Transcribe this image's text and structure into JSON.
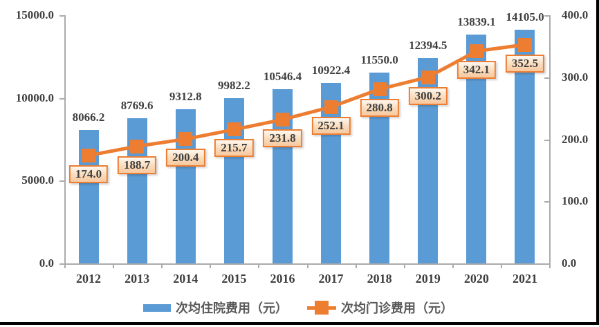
{
  "chart_data": {
    "type": "bar",
    "subtype": "bar-line-combo",
    "title": "",
    "categories": [
      "2012",
      "2013",
      "2014",
      "2015",
      "2016",
      "2017",
      "2018",
      "2019",
      "2020",
      "2021"
    ],
    "series": [
      {
        "name": "次均住院费用（元）",
        "type": "bar",
        "axis": "left",
        "color": "#5B9BD5",
        "values": [
          8066.2,
          8769.6,
          9312.8,
          9982.2,
          10546.4,
          10922.4,
          11550.0,
          12394.5,
          13839.1,
          14105.0
        ]
      },
      {
        "name": "次均门诊费用（元）",
        "type": "line",
        "axis": "right",
        "color": "#ED7D31",
        "values": [
          174.0,
          188.7,
          200.4,
          215.7,
          231.8,
          252.1,
          280.8,
          300.2,
          342.1,
          352.5
        ]
      }
    ],
    "left_axis": {
      "min": 0,
      "max": 15000,
      "tick_labels": [
        "0.0",
        "5000.0",
        "10000.0",
        "15000.0"
      ]
    },
    "right_axis": {
      "min": 0,
      "max": 400,
      "tick_labels": [
        "0.0",
        "100.0",
        "200.0",
        "300.0",
        "400.0"
      ]
    },
    "grid": false,
    "legend_position": "bottom",
    "data_labels": "all points, one decimal"
  },
  "colors": {
    "bar": "#5B9BD5",
    "line": "#ED7D31",
    "label_text": "#3f3f3f",
    "legend_text": "#595959",
    "axis_line": "#ababab",
    "point_label_box_top": "#fef8f1",
    "point_label_box_bottom": "#f7c89e",
    "frame_edge": "#000000"
  }
}
